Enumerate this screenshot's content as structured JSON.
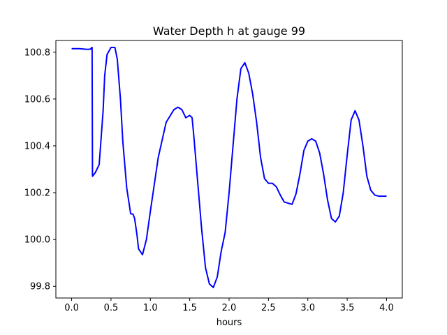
{
  "chart_data": {
    "type": "line",
    "title": "Water Depth h at gauge 99",
    "xlabel": "hours",
    "ylabel": "",
    "xlim": [
      -0.2,
      4.2
    ],
    "ylim": [
      99.75,
      100.85
    ],
    "x_ticks": [
      0.0,
      0.5,
      1.0,
      1.5,
      2.0,
      2.5,
      3.0,
      3.5,
      4.0
    ],
    "x_tick_labels": [
      "0.0",
      "0.5",
      "1.0",
      "1.5",
      "2.0",
      "2.5",
      "3.0",
      "3.5",
      "4.0"
    ],
    "y_ticks": [
      99.8,
      100.0,
      100.2,
      100.4,
      100.6,
      100.8
    ],
    "y_tick_labels": [
      "99.8",
      "100.0",
      "100.2",
      "100.4",
      "100.6",
      "100.8"
    ],
    "grid": false,
    "series": [
      {
        "color": "#0000ff",
        "x": [
          0.0,
          0.1,
          0.2,
          0.24,
          0.25,
          0.26,
          0.265,
          0.27,
          0.3,
          0.35,
          0.4,
          0.42,
          0.45,
          0.5,
          0.55,
          0.58,
          0.62,
          0.65,
          0.7,
          0.75,
          0.78,
          0.8,
          0.83,
          0.85,
          0.9,
          0.95,
          1.0,
          1.1,
          1.2,
          1.3,
          1.35,
          1.4,
          1.45,
          1.5,
          1.53,
          1.55,
          1.6,
          1.65,
          1.7,
          1.75,
          1.8,
          1.85,
          1.9,
          1.95,
          2.0,
          2.1,
          2.15,
          2.2,
          2.25,
          2.3,
          2.35,
          2.4,
          2.45,
          2.5,
          2.55,
          2.6,
          2.65,
          2.7,
          2.8,
          2.85,
          2.9,
          2.95,
          3.0,
          3.05,
          3.1,
          3.15,
          3.2,
          3.25,
          3.3,
          3.35,
          3.4,
          3.45,
          3.5,
          3.55,
          3.6,
          3.65,
          3.7,
          3.75,
          3.8,
          3.85,
          3.9,
          3.95,
          4.0
        ],
        "y": [
          100.815,
          100.815,
          100.812,
          100.813,
          100.818,
          100.82,
          100.27,
          100.272,
          100.285,
          100.32,
          100.55,
          100.7,
          100.79,
          100.82,
          100.82,
          100.77,
          100.6,
          100.42,
          100.22,
          100.11,
          100.108,
          100.09,
          100.02,
          99.96,
          99.935,
          100.0,
          100.12,
          100.35,
          100.5,
          100.555,
          100.565,
          100.555,
          100.52,
          100.53,
          100.52,
          100.45,
          100.25,
          100.05,
          99.88,
          99.81,
          99.795,
          99.84,
          99.95,
          100.03,
          100.2,
          100.6,
          100.73,
          100.755,
          100.71,
          100.62,
          100.5,
          100.35,
          100.26,
          100.24,
          100.24,
          100.225,
          100.19,
          100.16,
          100.15,
          100.195,
          100.28,
          100.38,
          100.42,
          100.43,
          100.42,
          100.37,
          100.28,
          100.17,
          100.09,
          100.075,
          100.1,
          100.2,
          100.36,
          100.51,
          100.55,
          100.51,
          100.4,
          100.27,
          100.21,
          100.19,
          100.185,
          100.185,
          100.185
        ]
      }
    ]
  }
}
